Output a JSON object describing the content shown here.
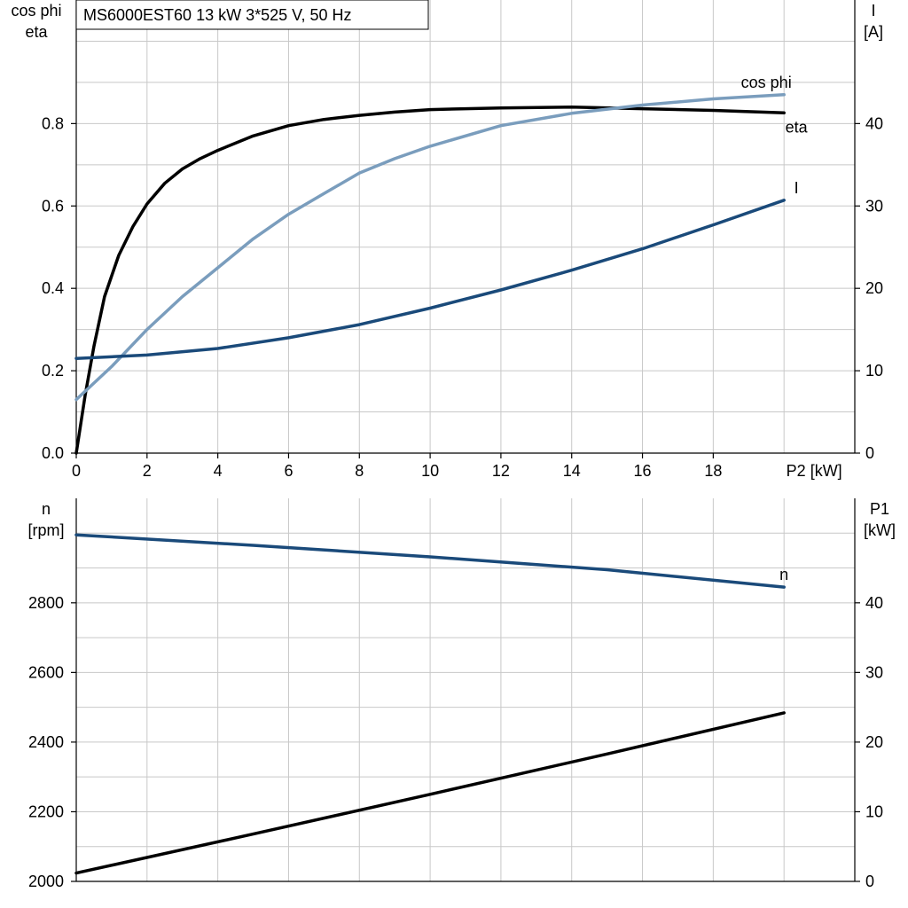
{
  "title": "MS6000EST60   13 kW   3*525 V, 50 Hz",
  "colors": {
    "eta": "#000000",
    "cos_phi": "#7a9dbd",
    "current": "#1a4a7a",
    "speed": "#1a4a7a",
    "p1": "#000000"
  },
  "chart_data": [
    {
      "type": "line",
      "x_label": "P2 [kW]",
      "x_ticks": [
        "0",
        "2",
        "4",
        "6",
        "8",
        "10",
        "12",
        "14",
        "16",
        "18"
      ],
      "xlim": [
        0,
        22
      ],
      "left_axis_label": [
        "cos phi",
        "eta"
      ],
      "left_ticks": [
        "0.0",
        "0.2",
        "0.4",
        "0.6",
        "0.8"
      ],
      "ylim_left": [
        0,
        1.1
      ],
      "right_axis_label": [
        "I",
        "[A]"
      ],
      "right_ticks": [
        "0",
        "10",
        "20",
        "30",
        "40"
      ],
      "ylim_right": [
        0,
        55
      ],
      "series": [
        {
          "name": "eta",
          "axis": "left",
          "color_key": "eta",
          "x": [
            0,
            0.25,
            0.5,
            0.8,
            1.2,
            1.6,
            2,
            2.5,
            3,
            3.5,
            4,
            5,
            6,
            7,
            8,
            9,
            10,
            12,
            14,
            16,
            18,
            20
          ],
          "y": [
            0,
            0.14,
            0.26,
            0.38,
            0.48,
            0.55,
            0.605,
            0.655,
            0.69,
            0.715,
            0.735,
            0.77,
            0.795,
            0.81,
            0.82,
            0.828,
            0.834,
            0.838,
            0.84,
            0.836,
            0.832,
            0.826
          ]
        },
        {
          "name": "cos phi",
          "axis": "left",
          "color_key": "cos_phi",
          "x": [
            0,
            1,
            2,
            3,
            4,
            5,
            6,
            7,
            8,
            9,
            10,
            12,
            14,
            16,
            18,
            20
          ],
          "y": [
            0.13,
            0.21,
            0.3,
            0.38,
            0.45,
            0.52,
            0.58,
            0.63,
            0.68,
            0.715,
            0.745,
            0.795,
            0.825,
            0.845,
            0.86,
            0.87
          ]
        },
        {
          "name": "I",
          "axis": "right",
          "color_key": "current",
          "x": [
            0,
            2,
            4,
            6,
            8,
            10,
            12,
            14,
            16,
            18,
            20
          ],
          "y": [
            11.5,
            11.9,
            12.7,
            14,
            15.6,
            17.6,
            19.8,
            22.2,
            24.8,
            27.7,
            30.7
          ]
        }
      ]
    },
    {
      "type": "line",
      "x_ticks": [],
      "xlim": [
        0,
        22
      ],
      "left_axis_label": [
        "n",
        "[rpm]"
      ],
      "left_ticks": [
        "2000",
        "2200",
        "2400",
        "2600",
        "2800"
      ],
      "ylim_left": [
        2000,
        3100
      ],
      "right_axis_label": [
        "P1",
        "[kW]"
      ],
      "right_ticks": [
        "0",
        "10",
        "20",
        "30",
        "40"
      ],
      "ylim_right": [
        0,
        55
      ],
      "series": [
        {
          "name": "n",
          "axis": "left",
          "color_key": "speed",
          "x": [
            0,
            5,
            10,
            15,
            20
          ],
          "y": [
            2995,
            2965,
            2932,
            2895,
            2845
          ]
        },
        {
          "name": "",
          "axis": "right",
          "color_key": "p1",
          "x": [
            0,
            5,
            10,
            15,
            20
          ],
          "y": [
            1.2,
            6.8,
            12.5,
            18.3,
            24.2
          ]
        }
      ]
    }
  ]
}
